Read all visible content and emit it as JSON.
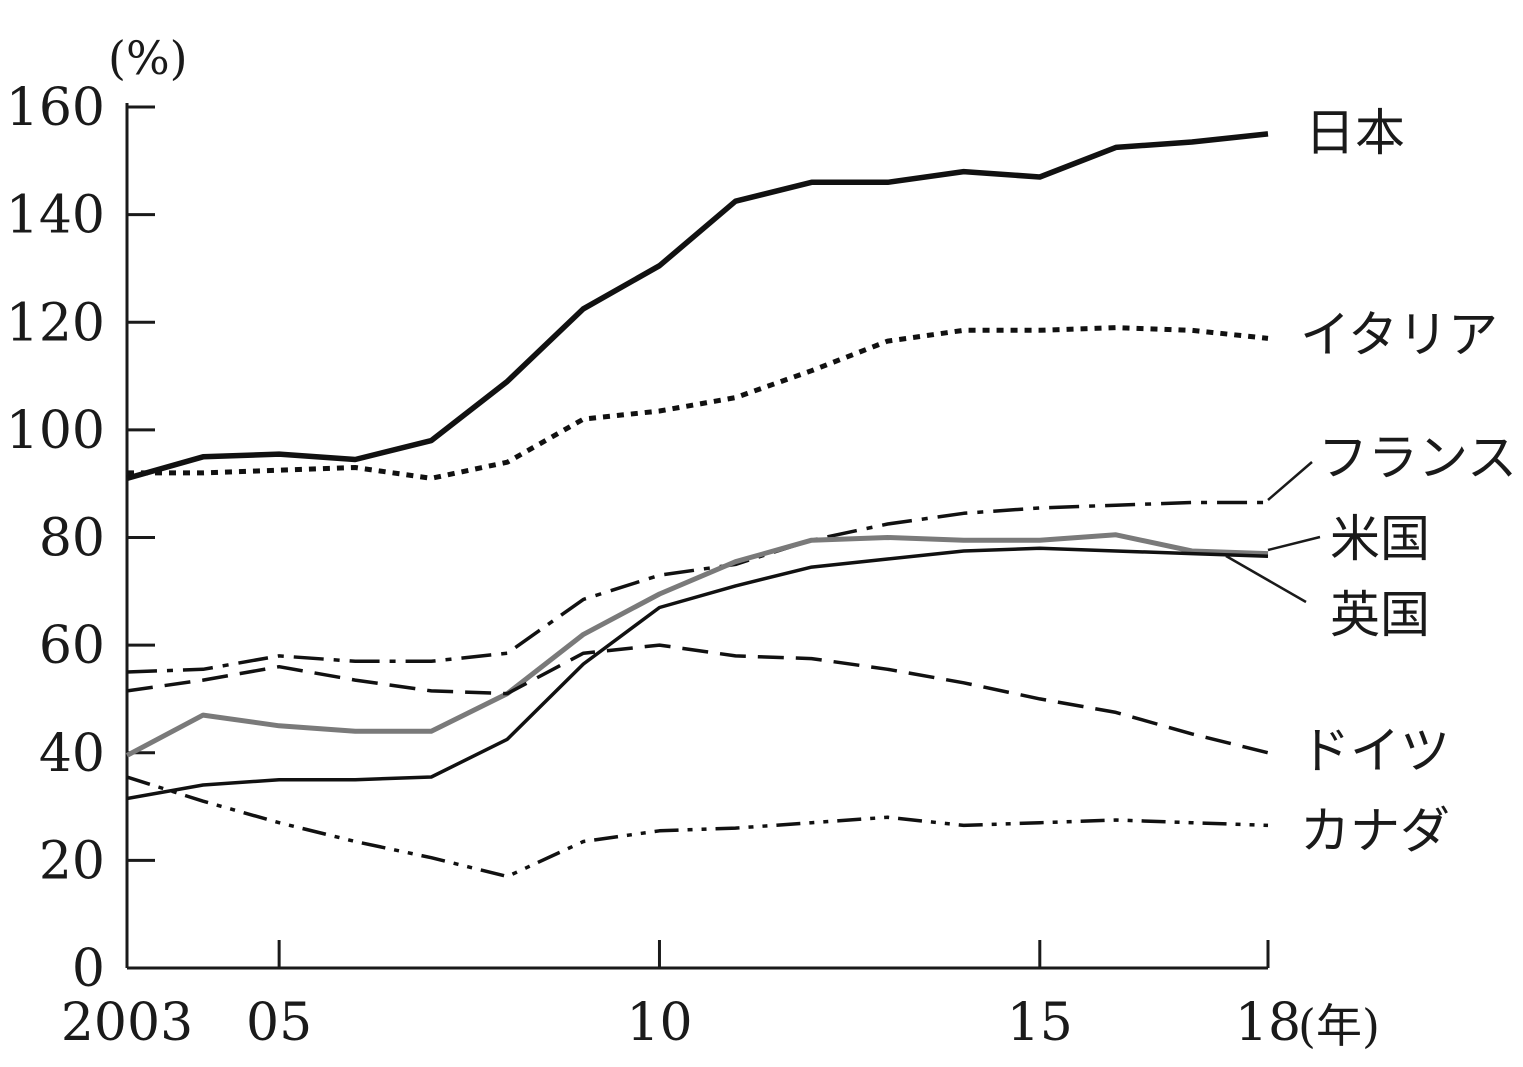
{
  "chart_data": {
    "type": "line",
    "title": "",
    "xlabel": "",
    "ylabel": "",
    "y_unit": "(%)",
    "x_unit": "(年)",
    "ylim": [
      0,
      160
    ],
    "xlim": [
      2003,
      2018
    ],
    "y_ticks": [
      0,
      20,
      40,
      60,
      80,
      100,
      120,
      140,
      160
    ],
    "x_ticks": [
      {
        "value": 2003,
        "label": "2003"
      },
      {
        "value": 2005,
        "label": "05"
      },
      {
        "value": 2010,
        "label": "10"
      },
      {
        "value": 2015,
        "label": "15"
      },
      {
        "value": 2018,
        "label": "18"
      }
    ],
    "grid": false,
    "legend": "direct labels at right end of lines",
    "x": [
      2003,
      2004,
      2005,
      2006,
      2007,
      2008,
      2009,
      2010,
      2011,
      2012,
      2013,
      2014,
      2015,
      2016,
      2017,
      2018
    ],
    "series": [
      {
        "name": "日本",
        "color": "#111111",
        "style": "solid-thick",
        "values": [
          91,
          95,
          95.5,
          94.5,
          98,
          109,
          122.5,
          130.5,
          142.5,
          146,
          146,
          148,
          147,
          152.5,
          153.5,
          155
        ]
      },
      {
        "name": "イタリア",
        "color": "#111111",
        "style": "dotted",
        "values": [
          92,
          92,
          92.5,
          93,
          91,
          94,
          102,
          103.5,
          106,
          111,
          116.5,
          118.5,
          118.5,
          119,
          118.5,
          117
        ]
      },
      {
        "name": "フランス",
        "color": "#111111",
        "style": "dash-dot",
        "values": [
          55,
          55.5,
          58,
          57,
          57,
          58.5,
          68.5,
          73,
          75,
          79.5,
          82.5,
          84.5,
          85.5,
          86,
          86.5,
          86.5
        ]
      },
      {
        "name": "米国",
        "color": "#7a7a7a",
        "style": "solid-gray",
        "values": [
          39.5,
          47,
          45,
          44,
          44,
          51,
          62,
          69.5,
          75.5,
          79.5,
          80,
          79.5,
          79.5,
          80.5,
          77.5,
          77
        ]
      },
      {
        "name": "英国",
        "color": "#111111",
        "style": "solid",
        "values": [
          31.5,
          34,
          35,
          35,
          35.5,
          42.5,
          56.5,
          67,
          71,
          74.5,
          76,
          77.5,
          78,
          77.5,
          77,
          76.5
        ]
      },
      {
        "name": "ドイツ",
        "color": "#111111",
        "style": "dashed",
        "values": [
          51.5,
          53.5,
          56,
          53.5,
          51.5,
          51,
          58.5,
          60,
          58,
          57.5,
          55.5,
          53,
          50,
          47.5,
          43.5,
          40
        ]
      },
      {
        "name": "カナダ",
        "color": "#111111",
        "style": "dash-dot-dot",
        "values": [
          35.5,
          31,
          27,
          23.5,
          20.5,
          17,
          23.5,
          25.5,
          26,
          27,
          28,
          26.5,
          27,
          27.5,
          27,
          26.5
        ]
      }
    ]
  }
}
